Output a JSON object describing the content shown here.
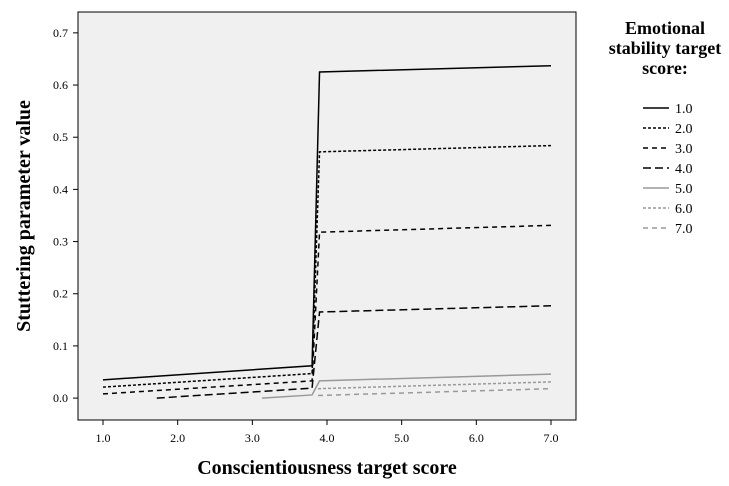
{
  "chart_data": {
    "type": "line",
    "x_label": "Conscientiousness target score",
    "y_label": "Stuttering parameter value",
    "legend_title": "Emotional stability target score:",
    "xlim": [
      0.665,
      7.335
    ],
    "ylim": [
      -0.042,
      0.74
    ],
    "xticks": [
      {
        "value": 1,
        "label": "1.0"
      },
      {
        "value": 2,
        "label": "2.0"
      },
      {
        "value": 3,
        "label": "3.0"
      },
      {
        "value": 4,
        "label": "4.0"
      },
      {
        "value": 5,
        "label": "5.0"
      },
      {
        "value": 6,
        "label": "6.0"
      },
      {
        "value": 7,
        "label": "7.0"
      }
    ],
    "yticks": [
      {
        "value": 0,
        "label": "0.0"
      },
      0.1,
      0.2,
      0.3,
      0.4,
      0.5,
      0.6,
      0.7
    ],
    "series": [
      {
        "name": "1.0",
        "color": "#000000",
        "dash": "none",
        "x": [
          1.0,
          3.8,
          3.9,
          7.0
        ],
        "values": [
          0.035,
          0.062,
          0.625,
          0.637
        ]
      },
      {
        "name": "2.0",
        "color": "#000000",
        "dash": "3,2",
        "x": [
          1.0,
          3.8,
          3.9,
          7.0
        ],
        "values": [
          0.021,
          0.047,
          0.472,
          0.484
        ]
      },
      {
        "name": "3.0",
        "color": "#000000",
        "dash": "5,4",
        "x": [
          1.0,
          3.8,
          3.9,
          7.0
        ],
        "values": [
          0.008,
          0.033,
          0.318,
          0.331
        ]
      },
      {
        "name": "4.0",
        "color": "#000000",
        "dash": "8,4",
        "x": [
          1.72,
          3.8,
          3.9,
          7.0
        ],
        "values": [
          0.0,
          0.019,
          0.165,
          0.177
        ]
      },
      {
        "name": "5.0",
        "color": "#999999",
        "dash": "none",
        "x": [
          3.13,
          3.8,
          3.9,
          7.0
        ],
        "values": [
          0.0,
          0.006,
          0.033,
          0.046
        ]
      },
      {
        "name": "6.0",
        "color": "#999999",
        "dash": "3,2",
        "x": [
          3.88,
          7.0
        ],
        "values": [
          0.018,
          0.031
        ]
      },
      {
        "name": "7.0",
        "color": "#999999",
        "dash": "5,4",
        "x": [
          3.88,
          7.0
        ],
        "values": [
          0.005,
          0.018
        ]
      }
    ]
  }
}
